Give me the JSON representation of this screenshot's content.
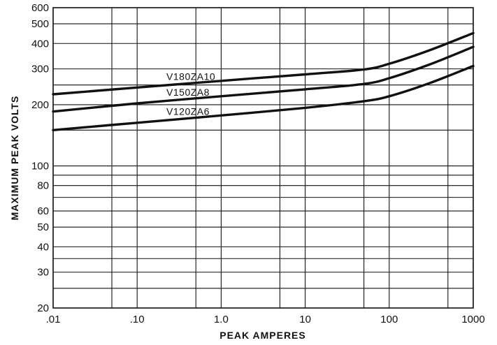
{
  "chart_data": {
    "type": "line",
    "title": "",
    "xlabel": "PEAK AMPERES",
    "ylabel": "MAXIMUM PEAK VOLTS",
    "x_scale": "log",
    "y_scale": "log",
    "xlim": [
      0.01,
      1000
    ],
    "ylim": [
      20,
      600
    ],
    "grid": true,
    "x_ticks": [
      {
        "value": 0.01,
        "label": ".01"
      },
      {
        "value": 0.1,
        "label": ".10"
      },
      {
        "value": 1,
        "label": "1.0"
      },
      {
        "value": 10,
        "label": "10"
      },
      {
        "value": 100,
        "label": "100"
      },
      {
        "value": 1000,
        "label": "1000"
      }
    ],
    "x_minor_grid": [
      0.05,
      0.5,
      5,
      50,
      500
    ],
    "y_ticks": [
      {
        "value": 20,
        "label": "20"
      },
      {
        "value": 30,
        "label": "30"
      },
      {
        "value": 40,
        "label": "40"
      },
      {
        "value": 50,
        "label": "50"
      },
      {
        "value": 60,
        "label": "60"
      },
      {
        "value": 80,
        "label": "80"
      },
      {
        "value": 100,
        "label": "100"
      },
      {
        "value": 200,
        "label": "200"
      },
      {
        "value": 300,
        "label": "300"
      },
      {
        "value": 400,
        "label": "400"
      },
      {
        "value": 500,
        "label": "500"
      },
      {
        "value": 600,
        "label": "600"
      }
    ],
    "y_minor_grid": [
      25,
      35,
      70,
      90,
      150,
      250
    ],
    "series": [
      {
        "name": "V180ZA10",
        "x": [
          0.01,
          0.1,
          1,
          10,
          50,
          100,
          300,
          1000
        ],
        "y": [
          225,
          243,
          262,
          282,
          298,
          318,
          370,
          450
        ]
      },
      {
        "name": "V150ZA8",
        "x": [
          0.01,
          0.1,
          1,
          10,
          50,
          100,
          300,
          1000
        ],
        "y": [
          185,
          203,
          220,
          238,
          253,
          270,
          315,
          385
        ]
      },
      {
        "name": "V120ZA6",
        "x": [
          0.01,
          0.1,
          1,
          10,
          50,
          100,
          300,
          1000
        ],
        "y": [
          150,
          163,
          177,
          193,
          208,
          220,
          255,
          310
        ]
      }
    ]
  }
}
